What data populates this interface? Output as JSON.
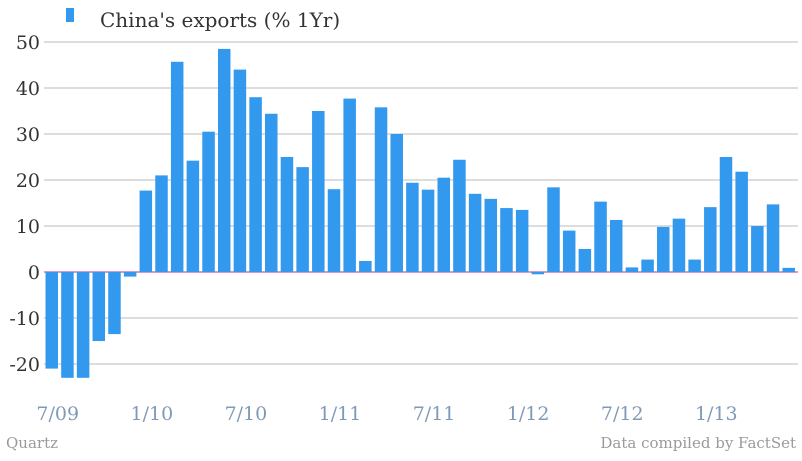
{
  "colors": {
    "bar": "#3399ee",
    "grid": "#bbbbbb",
    "zero": "#cc77aa",
    "xtick": "#7f9ab8",
    "ytick": "#333333",
    "footer": "#9a9a9a"
  },
  "footer": {
    "left": "Quartz",
    "right": "Data compiled by FactSet"
  },
  "chart_data": {
    "type": "bar",
    "title": "",
    "xlabel": "",
    "ylabel": "",
    "ylim": [
      -25,
      50
    ],
    "yticks": [
      50,
      40,
      30,
      20,
      10,
      0,
      -10,
      -20
    ],
    "grid": true,
    "legend_position": "top-left",
    "x_tick_labels": [
      "7/09",
      "1/10",
      "7/10",
      "1/11",
      "7/11",
      "1/12",
      "7/12",
      "1/13"
    ],
    "x_tick_offsets": [
      0,
      6,
      12,
      18,
      24,
      30,
      36,
      42
    ],
    "series": [
      {
        "name": "China's exports (% 1Yr)",
        "values": [
          -21.0,
          -23.0,
          -23.0,
          -15.0,
          -13.5,
          -1.0,
          17.7,
          21.0,
          45.7,
          24.2,
          30.5,
          48.5,
          44.0,
          38.0,
          34.4,
          25.0,
          22.8,
          35.0,
          18.0,
          37.7,
          2.4,
          35.8,
          30.0,
          19.4,
          17.9,
          20.5,
          24.4,
          17.0,
          15.9,
          13.9,
          13.5,
          -0.5,
          18.4,
          9.0,
          5.0,
          15.3,
          11.3,
          1.0,
          2.7,
          9.8,
          11.6,
          2.7,
          14.1,
          25.0,
          21.8,
          10.0,
          14.7,
          0.9
        ]
      }
    ]
  }
}
